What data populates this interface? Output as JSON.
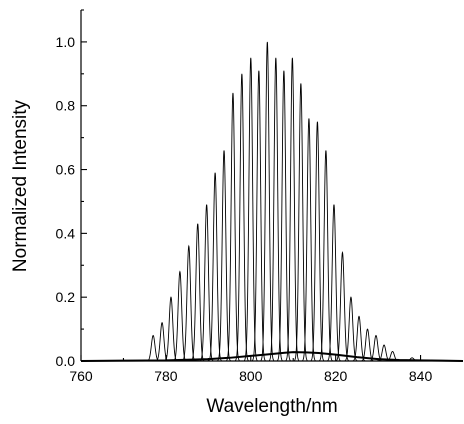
{
  "chart_data": {
    "type": "line",
    "title": "",
    "xlabel": "Wavelength/nm",
    "ylabel": "Normalized Intensity",
    "xlim": [
      760,
      850
    ],
    "ylim": [
      0,
      1.1
    ],
    "x_ticks": [
      760,
      780,
      800,
      820,
      840
    ],
    "x_tick_labels": [
      "760",
      "780",
      "800",
      "820",
      "840"
    ],
    "y_ticks": [
      0,
      0.2,
      0.4,
      0.6,
      0.8,
      1.0
    ],
    "y_tick_labels": [
      "0.0",
      "0.2",
      "0.4",
      "0.6",
      "0.8",
      "1.0"
    ],
    "grid": false,
    "peak_fwhm_nm": 1.0,
    "peaks": [
      {
        "center": 777.0,
        "amplitude": 0.08
      },
      {
        "center": 779.1,
        "amplitude": 0.12
      },
      {
        "center": 781.2,
        "amplitude": 0.2
      },
      {
        "center": 783.3,
        "amplitude": 0.28
      },
      {
        "center": 785.4,
        "amplitude": 0.36
      },
      {
        "center": 787.5,
        "amplitude": 0.43
      },
      {
        "center": 789.6,
        "amplitude": 0.49
      },
      {
        "center": 791.6,
        "amplitude": 0.59
      },
      {
        "center": 793.7,
        "amplitude": 0.66
      },
      {
        "center": 795.8,
        "amplitude": 0.84
      },
      {
        "center": 797.9,
        "amplitude": 0.9
      },
      {
        "center": 800.0,
        "amplitude": 0.95
      },
      {
        "center": 801.9,
        "amplitude": 0.91
      },
      {
        "center": 803.9,
        "amplitude": 1.0
      },
      {
        "center": 805.9,
        "amplitude": 0.95
      },
      {
        "center": 807.8,
        "amplitude": 0.91
      },
      {
        "center": 809.8,
        "amplitude": 0.95
      },
      {
        "center": 811.8,
        "amplitude": 0.87
      },
      {
        "center": 813.7,
        "amplitude": 0.76
      },
      {
        "center": 815.7,
        "amplitude": 0.75
      },
      {
        "center": 817.7,
        "amplitude": 0.66
      },
      {
        "center": 819.6,
        "amplitude": 0.49
      },
      {
        "center": 821.6,
        "amplitude": 0.34
      },
      {
        "center": 823.6,
        "amplitude": 0.2
      },
      {
        "center": 825.5,
        "amplitude": 0.14
      },
      {
        "center": 827.5,
        "amplitude": 0.1
      },
      {
        "center": 829.5,
        "amplitude": 0.08
      },
      {
        "center": 831.4,
        "amplitude": 0.05
      },
      {
        "center": 833.4,
        "amplitude": 0.03
      },
      {
        "center": 838.0,
        "amplitude": 0.01
      }
    ],
    "envelope": {
      "x": [
        760,
        770,
        780,
        790,
        795,
        800,
        805,
        808,
        810,
        813,
        816,
        820,
        825,
        830,
        835,
        840,
        845,
        850
      ],
      "y": [
        0.0,
        0.001,
        0.002,
        0.006,
        0.01,
        0.016,
        0.022,
        0.026,
        0.028,
        0.027,
        0.025,
        0.02,
        0.012,
        0.006,
        0.003,
        0.002,
        0.001,
        0.0
      ]
    }
  }
}
